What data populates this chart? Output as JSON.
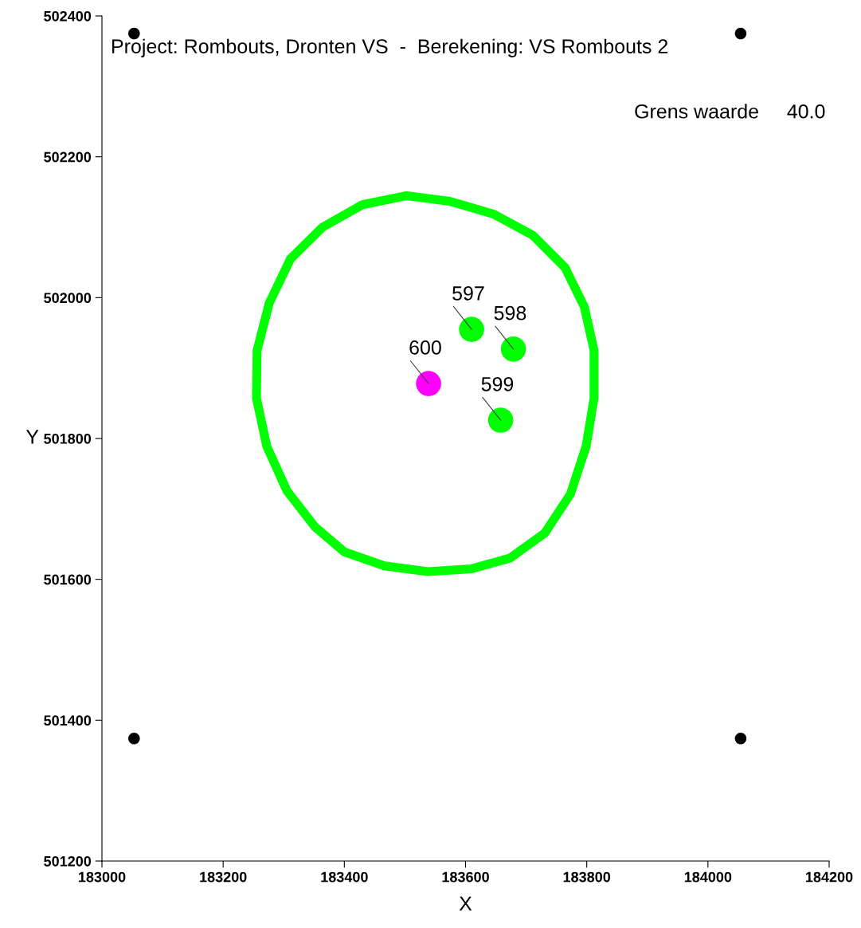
{
  "chart_data": {
    "type": "scatter",
    "title": "Project: Rombouts, Dronten VS  -  Berekening: VS Rombouts 2",
    "xlabel": "X",
    "ylabel": "Y",
    "xlim": [
      183000,
      184200
    ],
    "xticks": [
      183000,
      183200,
      183400,
      183600,
      183800,
      184000,
      184200
    ],
    "ylim": [
      501200,
      502400
    ],
    "yticks": [
      501200,
      501400,
      501600,
      501800,
      502000,
      502200,
      502400
    ],
    "grid": false,
    "legend": false,
    "marker": "circle",
    "series": [
      {
        "color": "#00ff00",
        "x": [
          183610,
          183679,
          183658
        ],
        "values": [
          501955,
          501927,
          501826
        ]
      },
      {
        "color": "#ff00ff",
        "x": [
          183539
        ],
        "values": [
          501878
        ]
      },
      {
        "color": "#000000",
        "x": [
          183053,
          184054,
          183053,
          184054
        ],
        "values": [
          502375,
          502375,
          501374,
          501374
        ]
      }
    ],
    "annotations": [
      {
        "text": "597",
        "x": 183610,
        "y": 501955
      },
      {
        "text": "598",
        "x": 183679,
        "y": 501927
      },
      {
        "text": "599",
        "x": 183658,
        "y": 501826
      },
      {
        "text": "600",
        "x": 183539,
        "y": 501878
      },
      "Grens waarde     40.0"
    ]
  }
}
